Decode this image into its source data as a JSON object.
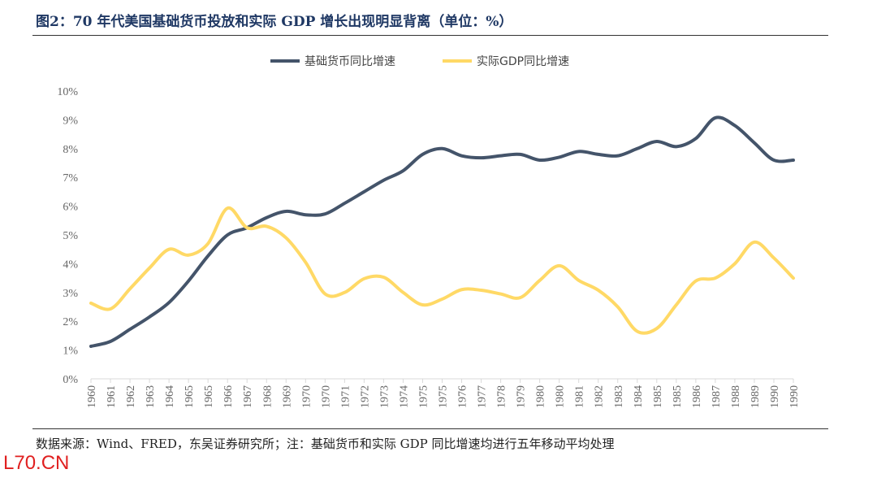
{
  "title": "图2：70 年代美国基础货币投放和实际 GDP 增长出现明显背离（单位：%）",
  "source": "数据来源：Wind、FRED，东吴证券研究所；注：基础货币和实际 GDP 同比增速均进行五年移动平均处理",
  "watermark": "L70.CN",
  "chart_data": {
    "type": "line",
    "categories": [
      "1960",
      "1961",
      "1962",
      "1963",
      "1964",
      "1965",
      "1965",
      "1966",
      "1967",
      "1968",
      "1969",
      "1970",
      "1970",
      "1971",
      "1972",
      "1973",
      "1974",
      "1975",
      "1975",
      "1976",
      "1977",
      "1978",
      "1979",
      "1980",
      "1980",
      "1981",
      "1982",
      "1983",
      "1984",
      "1985",
      "1985",
      "1986",
      "1987",
      "1988",
      "1989",
      "1990",
      "1990"
    ],
    "yticks": [
      "0%",
      "1%",
      "2%",
      "3%",
      "4%",
      "5%",
      "6%",
      "7%",
      "8%",
      "9%",
      "10%"
    ],
    "ylim": [
      0,
      10
    ],
    "grid": false,
    "legend_position": "top",
    "series": [
      {
        "name": "基础货币同比增速",
        "color": "#44546a",
        "values": [
          1.13,
          1.3,
          1.72,
          2.15,
          2.65,
          3.4,
          4.27,
          5.0,
          5.25,
          5.6,
          5.82,
          5.7,
          5.73,
          6.1,
          6.5,
          6.9,
          7.23,
          7.8,
          8.0,
          7.75,
          7.68,
          7.75,
          7.8,
          7.6,
          7.7,
          7.9,
          7.8,
          7.75,
          8.0,
          8.25,
          8.07,
          8.35,
          9.07,
          8.8,
          8.2,
          7.6,
          7.6
        ]
      },
      {
        "name": "实际GDP同比增速",
        "color": "#ffd966",
        "values": [
          2.63,
          2.43,
          3.13,
          3.85,
          4.5,
          4.3,
          4.7,
          5.93,
          5.25,
          5.3,
          4.9,
          4.05,
          2.95,
          3.0,
          3.48,
          3.53,
          3.0,
          2.57,
          2.77,
          3.1,
          3.08,
          2.95,
          2.82,
          3.42,
          3.93,
          3.42,
          3.08,
          2.5,
          1.65,
          1.75,
          2.57,
          3.4,
          3.5,
          4.0,
          4.75,
          4.2,
          3.5
        ]
      }
    ]
  }
}
